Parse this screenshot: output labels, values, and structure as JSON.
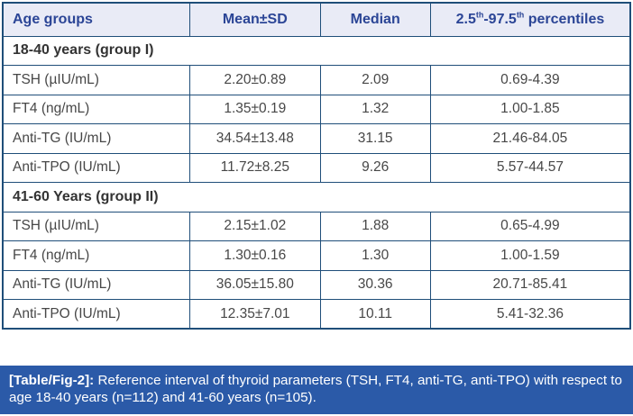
{
  "colors": {
    "table_border": "#1f4e79",
    "header_bg": "#e9ebf6",
    "header_text": "#2b4596",
    "body_text": "#474747",
    "caption_bg": "#2b5aa8",
    "caption_text": "#ffffff"
  },
  "table": {
    "header": {
      "age_groups": "Age groups",
      "mean_sd": "Mean±SD",
      "median": "Median",
      "percentiles": {
        "p1": "2.5",
        "sup1": "th",
        "p2": "-97.5",
        "sup2": "th",
        "p3": " percentiles"
      }
    },
    "groups": [
      {
        "label": "18-40 years (group I)",
        "rows": [
          {
            "param": "TSH (µIU/mL)",
            "mean_sd": "2.20±0.89",
            "median": "2.09",
            "percentiles": "0.69-4.39"
          },
          {
            "param": "FT4 (ng/mL)",
            "mean_sd": "1.35±0.19",
            "median": "1.32",
            "percentiles": "1.00-1.85"
          },
          {
            "param": "Anti-TG (IU/mL)",
            "mean_sd": "34.54±13.48",
            "median": "31.15",
            "percentiles": "21.46-84.05"
          },
          {
            "param": "Anti-TPO (IU/mL)",
            "mean_sd": "11.72±8.25",
            "median": "9.26",
            "percentiles": "5.57-44.57"
          }
        ]
      },
      {
        "label": "41-60 Years (group II)",
        "rows": [
          {
            "param": "TSH (µIU/mL)",
            "mean_sd": "2.15±1.02",
            "median": "1.88",
            "percentiles": "0.65-4.99"
          },
          {
            "param": "FT4 (ng/mL)",
            "mean_sd": "1.30±0.16",
            "median": "1.30",
            "percentiles": "1.00-1.59"
          },
          {
            "param": "Anti-TG (IU/mL)",
            "mean_sd": "36.05±15.80",
            "median": "30.36",
            "percentiles": "20.71-85.41"
          },
          {
            "param": "Anti-TPO (IU/mL)",
            "mean_sd": "12.35±7.01",
            "median": "10.11",
            "percentiles": "5.41-32.36"
          }
        ]
      }
    ]
  },
  "caption": {
    "tag": "[Table/Fig-2]:",
    "text": " Reference interval of thyroid parameters (TSH, FT4, anti-TG, anti-TPO) with respect to age 18-40 years (n=112) and 41-60 years (n=105)."
  }
}
